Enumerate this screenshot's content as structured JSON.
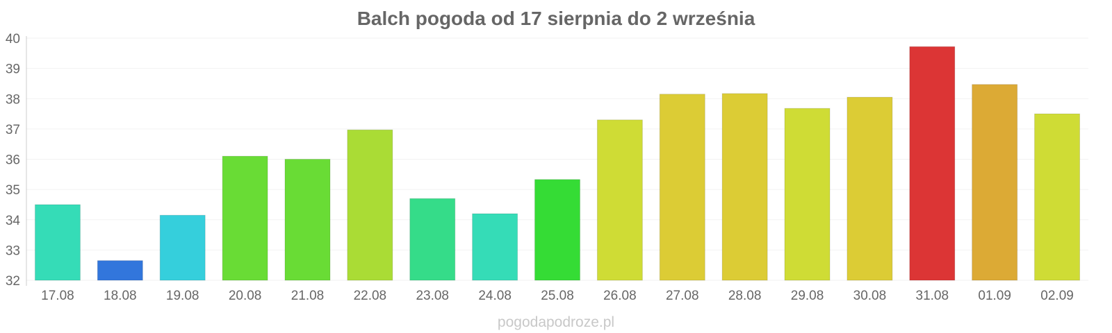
{
  "watermark": "pogodapodroze.pl",
  "chart_data": {
    "type": "bar",
    "title": "Balch pogoda od 17 sierpnia do 2 września",
    "xlabel": "",
    "ylabel": "",
    "ylim": [
      32,
      40
    ],
    "yticks": [
      32,
      33,
      34,
      35,
      36,
      37,
      38,
      39,
      40
    ],
    "grid": true,
    "categories": [
      "17.08",
      "18.08",
      "19.08",
      "20.08",
      "21.08",
      "22.08",
      "23.08",
      "24.08",
      "25.08",
      "26.08",
      "27.08",
      "28.08",
      "29.08",
      "30.08",
      "31.08",
      "01.09",
      "02.09"
    ],
    "values": [
      34.5,
      32.65,
      34.15,
      36.1,
      36.0,
      36.97,
      34.7,
      34.2,
      35.33,
      37.3,
      38.15,
      38.17,
      37.68,
      38.05,
      39.72,
      38.47,
      37.5
    ],
    "colors": [
      "#35dcb7",
      "#3276dc",
      "#35cfdc",
      "#69dc35",
      "#69dc35",
      "#aadc35",
      "#35dc89",
      "#35dcb7",
      "#35dc35",
      "#cfdc35",
      "#dccc35",
      "#dccc35",
      "#cfdc35",
      "#dccc35",
      "#dc3535",
      "#dcaa35",
      "#cfdc35"
    ]
  }
}
